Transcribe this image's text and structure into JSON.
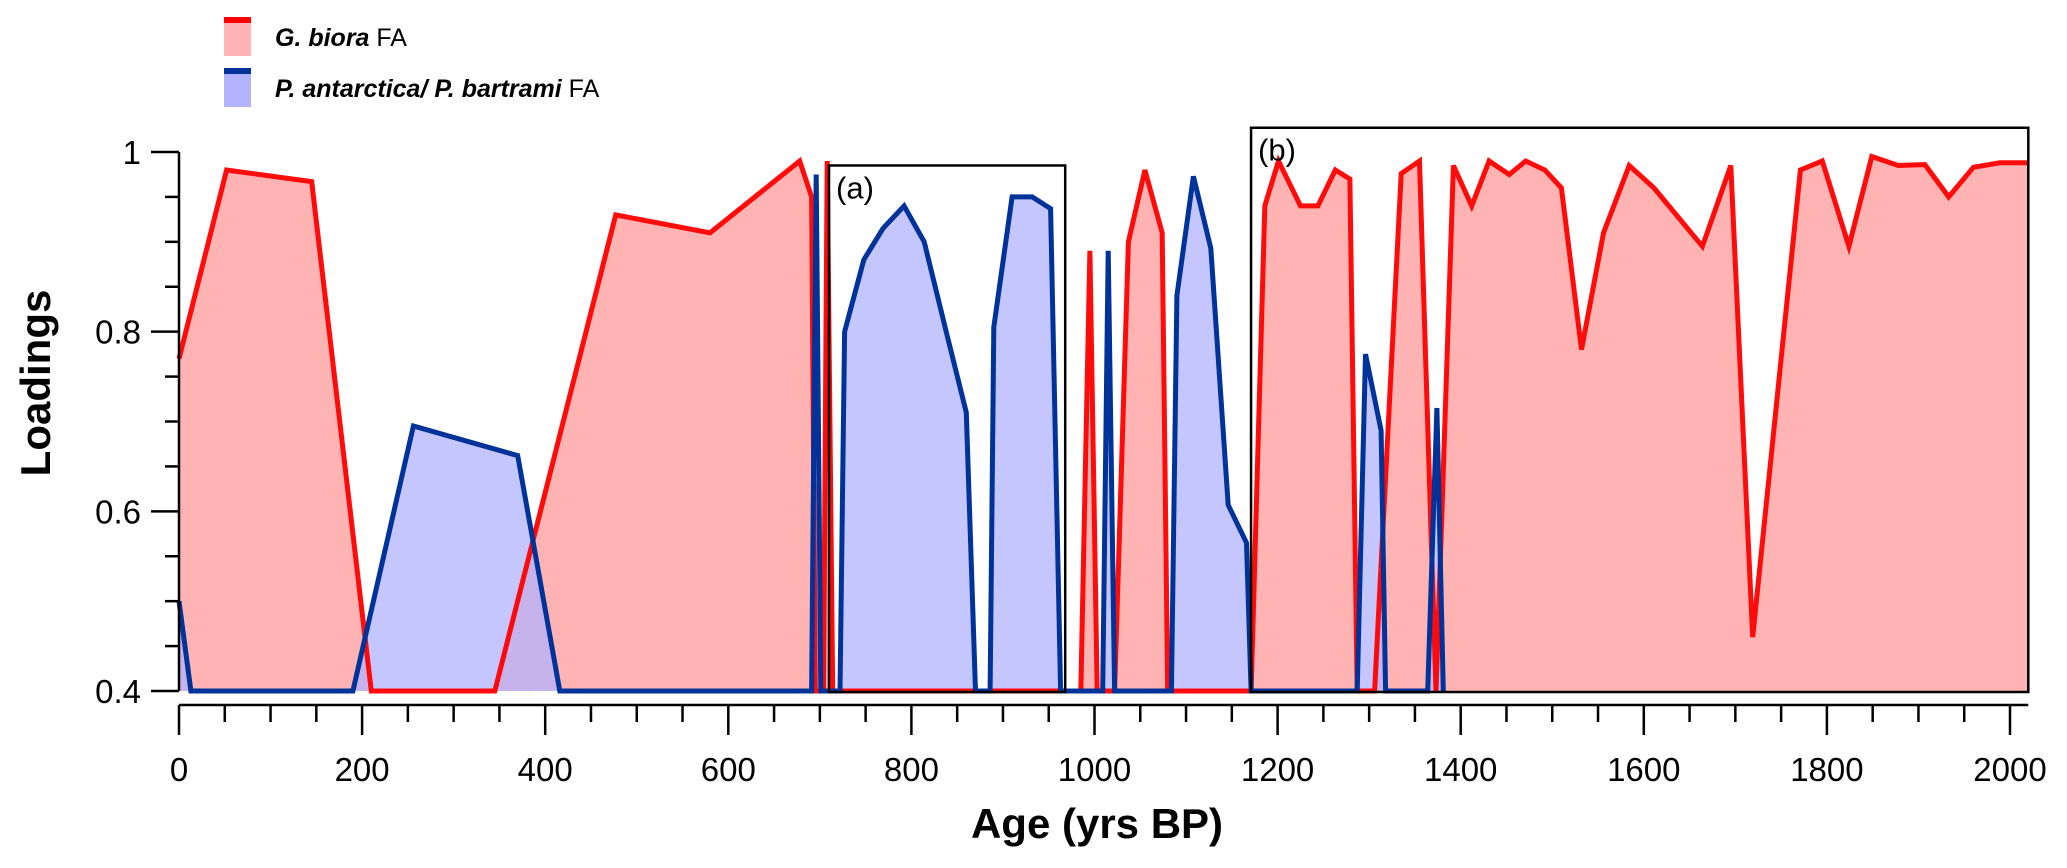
{
  "chart_data": {
    "type": "area",
    "title": "",
    "xlabel": "Age (yrs BP)",
    "ylabel": "Loadings",
    "xlim": [
      0,
      2020
    ],
    "ylim": [
      0.4,
      1.0
    ],
    "x_ticks": [
      0,
      200,
      400,
      600,
      800,
      1000,
      1200,
      1400,
      1600,
      1800,
      2000
    ],
    "x_tick_labels": [
      "0",
      "200",
      "400",
      "600",
      "800",
      "1000",
      "1200",
      "1400",
      "1600",
      "1800",
      "2000"
    ],
    "y_ticks": [
      0.4,
      0.6,
      0.8,
      1.0
    ],
    "y_tick_labels": [
      "0.4",
      "0.6",
      "0.8",
      "1"
    ],
    "grid": false,
    "legend_placement": "top-left",
    "legend": [
      {
        "italic": "G. biora",
        "suffix": " FA",
        "line_color": "#ff0000",
        "fill_color": "#ffb3b3"
      },
      {
        "italic": "P. antarctica/ P. bartrami",
        "suffix": " FA",
        "line_color": "#003399",
        "fill_color": "#b3b3ff"
      }
    ],
    "annotations": [
      {
        "label": "(a)",
        "x_range": [
          710,
          968
        ],
        "y_top": 0.985
      },
      {
        "label": "(b)",
        "x_range": [
          1171,
          2020
        ],
        "y_top": 1.027
      }
    ],
    "series": [
      {
        "name": "G. biora FA",
        "color": "#ff0000",
        "fill": "#ffb3b3",
        "x": [
          0,
          52,
          145,
          210,
          217,
          345,
          477,
          580,
          678,
          691,
          695,
          704,
          708,
          714,
          985,
          995,
          1003,
          1014,
          1022,
          1037,
          1055,
          1074,
          1080,
          1171,
          1186,
          1201,
          1225,
          1244,
          1263,
          1279,
          1287,
          1306,
          1335,
          1355,
          1373,
          1392,
          1412,
          1431,
          1453,
          1471,
          1492,
          1510,
          1532,
          1556,
          1584,
          1611,
          1664,
          1695,
          1719,
          1771,
          1795,
          1824,
          1849,
          1878,
          1907,
          1933,
          1960,
          1989,
          2020
        ],
        "y": [
          0.77,
          0.98,
          0.967,
          0.4,
          0.4,
          0.4,
          0.93,
          0.91,
          0.99,
          0.95,
          0.4,
          0.4,
          0.99,
          0.4,
          0.4,
          0.89,
          0.4,
          0.4,
          0.4,
          0.9,
          0.98,
          0.91,
          0.4,
          0.4,
          0.94,
          0.99,
          0.94,
          0.94,
          0.98,
          0.97,
          0.4,
          0.4,
          0.976,
          0.99,
          0.4,
          0.985,
          0.94,
          0.99,
          0.975,
          0.99,
          0.98,
          0.96,
          0.78,
          0.91,
          0.985,
          0.96,
          0.895,
          0.985,
          0.46,
          0.98,
          0.99,
          0.895,
          0.995,
          0.985,
          0.986,
          0.95,
          0.983,
          0.988,
          0.988
        ]
      },
      {
        "name": "P. antarctica/ P. bartrami FA",
        "color": "#003399",
        "fill": "#b3b3ff",
        "x": [
          0,
          13,
          190,
          256,
          370,
          416,
          691,
          696,
          701,
          722,
          727,
          748,
          769,
          792,
          814,
          838,
          860,
          870,
          886,
          890,
          910,
          932,
          952,
          963,
          995,
          1009,
          1015,
          1022,
          1084,
          1090,
          1108,
          1127,
          1146,
          1166,
          1171,
          1287,
          1296,
          1313,
          1318,
          1364,
          1374,
          1381
        ],
        "y": [
          0.5,
          0.4,
          0.4,
          0.695,
          0.662,
          0.4,
          0.4,
          0.975,
          0.4,
          0.4,
          0.8,
          0.88,
          0.915,
          0.94,
          0.9,
          0.8,
          0.71,
          0.4,
          0.4,
          0.805,
          0.95,
          0.95,
          0.937,
          0.4,
          0.4,
          0.4,
          0.89,
          0.4,
          0.4,
          0.84,
          0.973,
          0.893,
          0.607,
          0.565,
          0.4,
          0.4,
          0.775,
          0.69,
          0.4,
          0.4,
          0.715,
          0.4
        ]
      }
    ]
  }
}
